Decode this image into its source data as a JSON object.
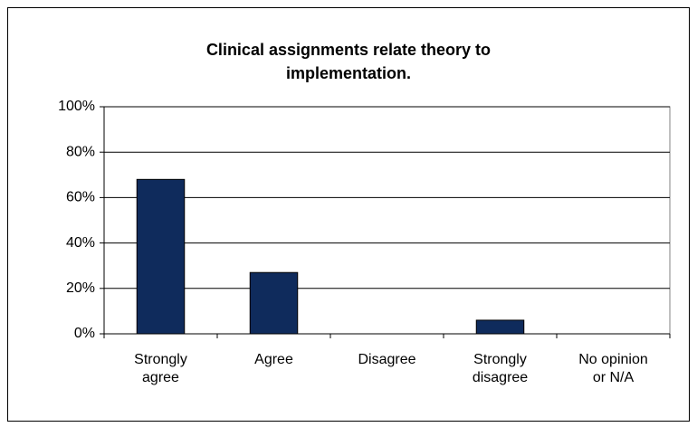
{
  "chart_data": {
    "type": "bar",
    "title": "Clinical assignments relate theory to implementation.",
    "categories": [
      "Strongly agree",
      "Agree",
      "Disagree",
      "Strongly disagree",
      "No opinion or N/A"
    ],
    "values": [
      68,
      27,
      0,
      6,
      0
    ],
    "color": "#0f2b5c",
    "ylim": [
      0,
      100
    ],
    "yticks": [
      {
        "value": 0,
        "label": "0%"
      },
      {
        "value": 20,
        "label": "20%"
      },
      {
        "value": 40,
        "label": "40%"
      },
      {
        "value": 60,
        "label": "60%"
      },
      {
        "value": 80,
        "label": "80%"
      },
      {
        "value": 100,
        "label": "100%"
      }
    ],
    "grid": true
  }
}
